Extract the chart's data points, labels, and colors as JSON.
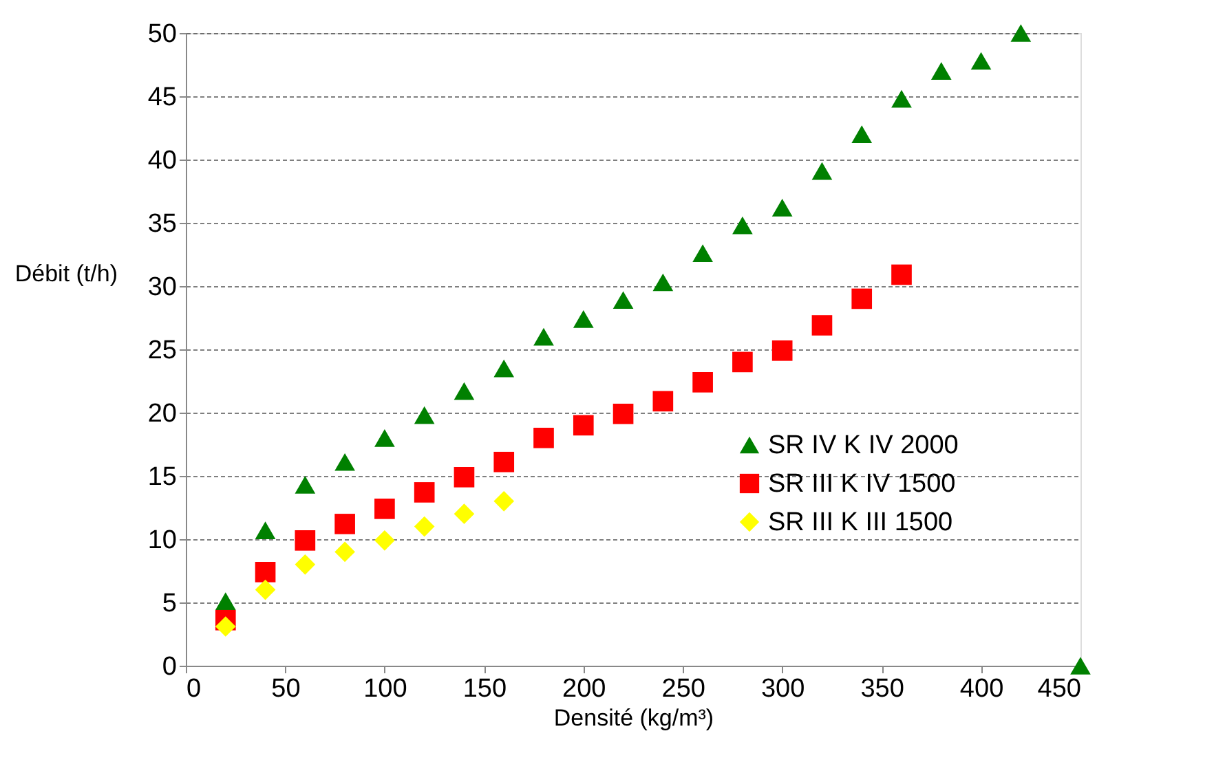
{
  "chart_data": {
    "type": "scatter",
    "xlabel": "Densité (kg/m³)",
    "ylabel": "Débit (t/h)",
    "xlim": [
      0,
      450
    ],
    "xticks": [
      0,
      50,
      100,
      150,
      200,
      250,
      300,
      350,
      400,
      450
    ],
    "ylim": [
      0,
      50
    ],
    "yticks": [
      0,
      5,
      10,
      15,
      20,
      25,
      30,
      35,
      40,
      45,
      50
    ],
    "grid": "y",
    "legend": "right",
    "series": [
      {
        "name": "SR IV K IV 2000",
        "color": "#008000",
        "marker": "triangle",
        "x": [
          20,
          40,
          60,
          80,
          100,
          120,
          140,
          160,
          180,
          200,
          220,
          240,
          260,
          280,
          300,
          320,
          340,
          360,
          380,
          400,
          420,
          450
        ],
        "values": [
          5.1,
          10.7,
          14.3,
          16.1,
          18,
          19.8,
          21.7,
          23.5,
          26,
          27.4,
          28.9,
          30.3,
          32.6,
          34.8,
          36.2,
          39.1,
          42,
          44.8,
          47,
          47.8,
          50,
          0
        ]
      },
      {
        "name": "SR III K IV 1500",
        "color": "#ff0000",
        "marker": "square",
        "x": [
          20,
          40,
          60,
          80,
          100,
          120,
          140,
          160,
          180,
          200,
          220,
          240,
          260,
          280,
          300,
          320,
          340,
          360
        ],
        "values": [
          3.6,
          7.4,
          9.9,
          11.2,
          12.4,
          13.7,
          14.9,
          16.1,
          18,
          19,
          19.9,
          20.9,
          22.4,
          24,
          24.9,
          26.9,
          29,
          30.9
        ]
      },
      {
        "name": "SR III K III 1500",
        "color": "#ffff00",
        "marker": "diamond",
        "x": [
          20,
          40,
          60,
          80,
          100,
          120,
          140,
          160
        ],
        "values": [
          3.1,
          6,
          8,
          9,
          9.9,
          11,
          12,
          13
        ]
      }
    ]
  }
}
